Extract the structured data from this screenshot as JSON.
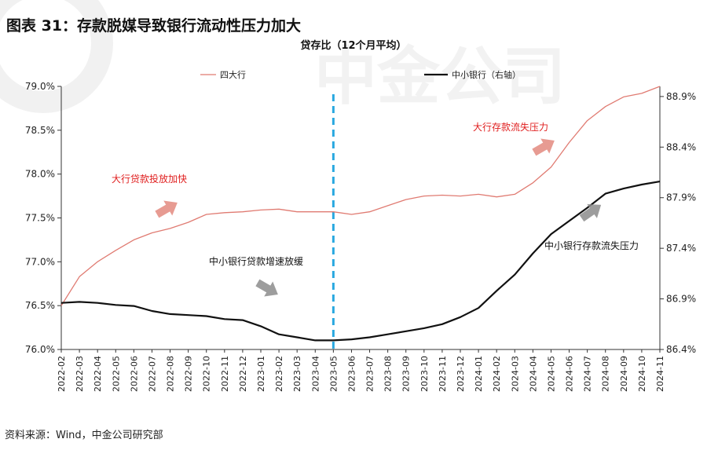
{
  "figure_title": "图表 31：存款脱媒导致银行流动性压力加大",
  "source": "资料来源：Wind，中金公司研究部",
  "watermark": "中金公司",
  "colors": {
    "big4": "#e07b72",
    "small_mid": "#111111",
    "divider": "#29a8e0",
    "annotation_red": "#e02020",
    "arrow_red": "#e38a7f",
    "arrow_gray": "#8c8c8c"
  },
  "chart_data": {
    "type": "line",
    "title": "贷存比（12个月平均）",
    "x": [
      "2022-02",
      "2022-03",
      "2022-04",
      "2022-05",
      "2022-06",
      "2022-07",
      "2022-08",
      "2022-09",
      "2022-10",
      "2022-11",
      "2022-12",
      "2023-01",
      "2023-02",
      "2023-03",
      "2023-04",
      "2023-05",
      "2023-06",
      "2023-07",
      "2023-08",
      "2023-09",
      "2023-10",
      "2023-11",
      "2023-12",
      "2024-01",
      "2024-02",
      "2024-03",
      "2024-04",
      "2024-05",
      "2024-06",
      "2024-07",
      "2024-08",
      "2024-09",
      "2024-10",
      "2024-11"
    ],
    "series": [
      {
        "name": "四大行",
        "axis": "left",
        "values": [
          76.5,
          76.83,
          77.0,
          77.13,
          77.25,
          77.33,
          77.38,
          77.45,
          77.54,
          77.56,
          77.57,
          77.59,
          77.6,
          77.57,
          77.57,
          77.57,
          77.54,
          77.57,
          77.64,
          77.71,
          77.75,
          77.76,
          77.75,
          77.77,
          77.74,
          77.77,
          77.9,
          78.08,
          78.36,
          78.61,
          78.77,
          78.88,
          78.92,
          79.0
        ]
      },
      {
        "name": "中小银行（右轴）",
        "axis": "right",
        "values": [
          86.86,
          86.87,
          86.86,
          86.84,
          86.83,
          86.78,
          86.75,
          86.74,
          86.73,
          86.7,
          86.69,
          86.63,
          86.55,
          86.52,
          86.49,
          86.49,
          86.5,
          86.52,
          86.55,
          86.58,
          86.61,
          86.65,
          86.72,
          86.81,
          86.98,
          87.14,
          87.35,
          87.54,
          87.67,
          87.8,
          87.94,
          87.99,
          88.03,
          88.06
        ]
      }
    ],
    "y_left": {
      "ticks": [
        "76.0%",
        "76.5%",
        "77.0%",
        "77.5%",
        "78.0%",
        "78.5%",
        "79.0%"
      ],
      "range": [
        76.0,
        79.0
      ]
    },
    "y_right": {
      "ticks": [
        "86.4%",
        "86.9%",
        "87.4%",
        "87.9%",
        "88.4%",
        "88.9%"
      ],
      "range": [
        86.4,
        89.0
      ]
    },
    "divider_at": "2023-05",
    "annotations": [
      {
        "text": "大行贷款投放加快",
        "color": "red"
      },
      {
        "text": "大行存款流失压力",
        "color": "red"
      },
      {
        "text": "中小银行贷款增速放缓",
        "color": "black"
      },
      {
        "text": "中小银行存款流失压力",
        "color": "black"
      }
    ],
    "legend": [
      {
        "name": "四大行",
        "placement": "top-left"
      },
      {
        "name": "中小银行（右轴）",
        "placement": "top-right"
      }
    ],
    "grid": false
  }
}
